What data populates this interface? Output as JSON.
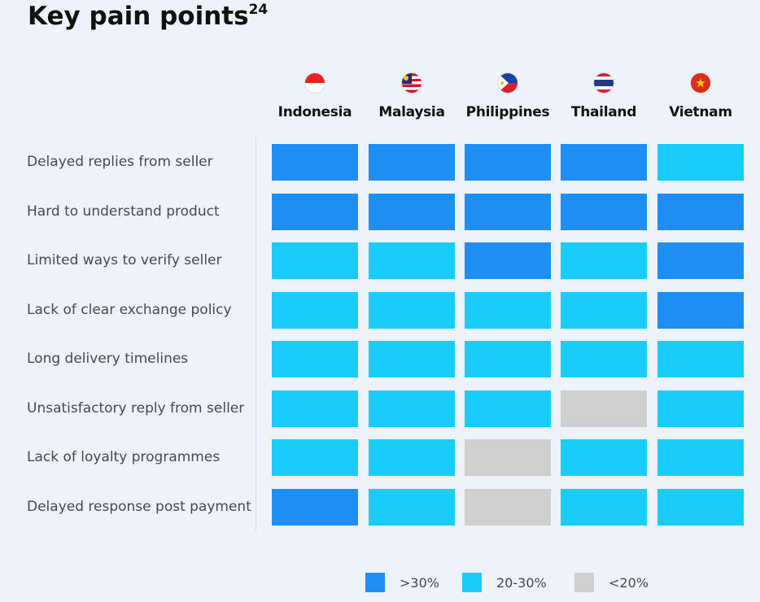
{
  "title": "Key pain points",
  "title_superscript": "24",
  "colors": {
    ">30%": "#1e8ef5",
    "20-30%": "#1accfc",
    "<20%": "#cfcfcf"
  },
  "chart_data": {
    "type": "heatmap",
    "title": "Key pain points",
    "columns": [
      {
        "name": "Indonesia",
        "flag_icon": "indonesia-flag-icon"
      },
      {
        "name": "Malaysia",
        "flag_icon": "malaysia-flag-icon"
      },
      {
        "name": "Philippines",
        "flag_icon": "philippines-flag-icon"
      },
      {
        "name": "Thailand",
        "flag_icon": "thailand-flag-icon"
      },
      {
        "name": "Vietnam",
        "flag_icon": "vietnam-flag-icon"
      }
    ],
    "rows": [
      {
        "label": "Delayed replies from seller",
        "values": [
          ">30%",
          ">30%",
          ">30%",
          ">30%",
          "20-30%"
        ]
      },
      {
        "label": "Hard to understand product",
        "values": [
          ">30%",
          ">30%",
          ">30%",
          ">30%",
          ">30%"
        ]
      },
      {
        "label": "Limited ways to verify seller",
        "values": [
          "20-30%",
          "20-30%",
          ">30%",
          "20-30%",
          ">30%"
        ]
      },
      {
        "label": "Lack of clear exchange policy",
        "values": [
          "20-30%",
          "20-30%",
          "20-30%",
          "20-30%",
          ">30%"
        ]
      },
      {
        "label": "Long delivery timelines",
        "values": [
          "20-30%",
          "20-30%",
          "20-30%",
          "20-30%",
          "20-30%"
        ]
      },
      {
        "label": "Unsatisfactory reply from seller",
        "values": [
          "20-30%",
          "20-30%",
          "20-30%",
          "<20%",
          "20-30%"
        ]
      },
      {
        "label": "Lack of loyalty programmes",
        "values": [
          "20-30%",
          "20-30%",
          "<20%",
          "20-30%",
          "20-30%"
        ]
      },
      {
        "label": "Delayed response post payment",
        "values": [
          ">30%",
          "20-30%",
          "<20%",
          "20-30%",
          "20-30%"
        ]
      }
    ],
    "legend": [
      {
        "label": ">30%",
        "category": ">30%"
      },
      {
        "label": "20-30%",
        "category": "20-30%"
      },
      {
        "label": "<20%",
        "category": "<20%"
      }
    ],
    "legend_position": "bottom"
  }
}
